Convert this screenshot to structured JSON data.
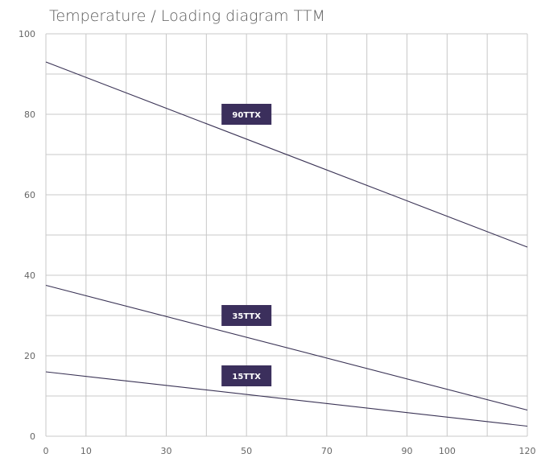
{
  "chart_data": {
    "type": "line",
    "title": "Temperature / Loading diagram TTM",
    "xlabel": "",
    "ylabel": "",
    "xlim": [
      0,
      120
    ],
    "ylim": [
      0,
      100
    ],
    "x_ticks": [
      0,
      10,
      30,
      50,
      70,
      90,
      100,
      120
    ],
    "y_ticks": [
      0,
      20,
      40,
      60,
      80,
      100
    ],
    "grid": true,
    "series": [
      {
        "name": "90TTX",
        "x": [
          0,
          120
        ],
        "y": [
          93,
          47
        ],
        "label_at": [
          50,
          80
        ]
      },
      {
        "name": "35TTX",
        "x": [
          0,
          120
        ],
        "y": [
          37.5,
          6.5
        ],
        "label_at": [
          50,
          30
        ]
      },
      {
        "name": "15TTX",
        "x": [
          0,
          120
        ],
        "y": [
          16,
          2.5
        ],
        "label_at": [
          50,
          15
        ]
      }
    ],
    "colors": {
      "line": "#3a3355",
      "label_bg": "#3b2f5c",
      "grid": "#c8c8c8"
    }
  }
}
